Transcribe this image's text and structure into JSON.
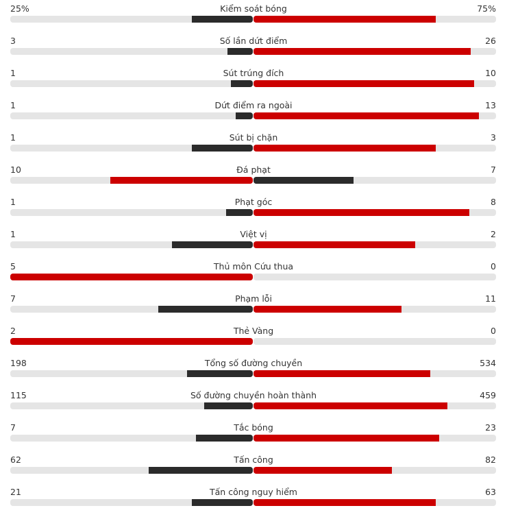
{
  "colors": {
    "leader": "#cc0000",
    "trailer": "#2b2b2b",
    "track": "#e5e5e5"
  },
  "chart_data": {
    "type": "bar",
    "orientation": "diverging-horizontal",
    "rows": [
      {
        "label": "Kiểm soát bóng",
        "home_text": "25%",
        "away_text": "75%",
        "home": 25,
        "away": 75
      },
      {
        "label": "Số lần dứt điểm",
        "home_text": "3",
        "away_text": "26",
        "home": 3,
        "away": 26
      },
      {
        "label": "Sút trúng đích",
        "home_text": "1",
        "away_text": "10",
        "home": 1,
        "away": 10
      },
      {
        "label": "Dứt điểm ra ngoài",
        "home_text": "1",
        "away_text": "13",
        "home": 1,
        "away": 13
      },
      {
        "label": "Sút bị chặn",
        "home_text": "1",
        "away_text": "3",
        "home": 1,
        "away": 3
      },
      {
        "label": "Đá phạt",
        "home_text": "10",
        "away_text": "7",
        "home": 10,
        "away": 7
      },
      {
        "label": "Phạt góc",
        "home_text": "1",
        "away_text": "8",
        "home": 1,
        "away": 8
      },
      {
        "label": "Việt vị",
        "home_text": "1",
        "away_text": "2",
        "home": 1,
        "away": 2
      },
      {
        "label": "Thủ môn Cứu thua",
        "home_text": "5",
        "away_text": "0",
        "home": 5,
        "away": 0
      },
      {
        "label": "Phạm lỗi",
        "home_text": "7",
        "away_text": "11",
        "home": 7,
        "away": 11
      },
      {
        "label": "Thẻ Vàng",
        "home_text": "2",
        "away_text": "0",
        "home": 2,
        "away": 0
      },
      {
        "label": "Tổng số đường chuyền",
        "home_text": "198",
        "away_text": "534",
        "home": 198,
        "away": 534
      },
      {
        "label": "Số đường chuyền hoàn thành",
        "home_text": "115",
        "away_text": "459",
        "home": 115,
        "away": 459
      },
      {
        "label": "Tắc bóng",
        "home_text": "7",
        "away_text": "23",
        "home": 7,
        "away": 23
      },
      {
        "label": "Tấn công",
        "home_text": "62",
        "away_text": "82",
        "home": 62,
        "away": 82
      },
      {
        "label": "Tấn công nguy hiểm",
        "home_text": "21",
        "away_text": "63",
        "home": 21,
        "away": 63
      }
    ]
  }
}
